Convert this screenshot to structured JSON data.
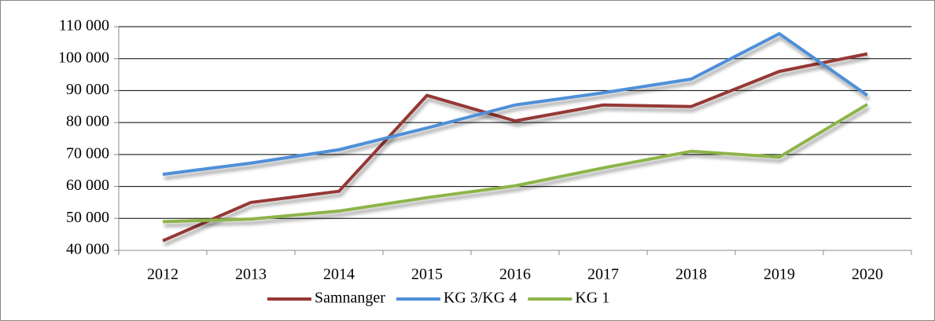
{
  "chart_data": {
    "type": "line",
    "categories": [
      "2012",
      "2013",
      "2014",
      "2015",
      "2016",
      "2017",
      "2018",
      "2019",
      "2020"
    ],
    "series": [
      {
        "name": "Samnanger",
        "color": "#953735",
        "values": [
          43000,
          55000,
          58500,
          88500,
          80500,
          85500,
          85000,
          96000,
          101500
        ]
      },
      {
        "name": "KG 3/KG 4",
        "color": "#4f8fd8",
        "values": [
          63800,
          67300,
          71500,
          78300,
          85500,
          89300,
          93600,
          107800,
          88500
        ]
      },
      {
        "name": "KG 1",
        "color": "#8db44a",
        "values": [
          49000,
          49800,
          52300,
          56500,
          60200,
          65800,
          71000,
          69200,
          85700
        ]
      }
    ],
    "ylim": [
      40000,
      110000
    ],
    "yticks": [
      {
        "value": 40000,
        "label": "40 000"
      },
      {
        "value": 50000,
        "label": "50 000"
      },
      {
        "value": 60000,
        "label": "60 000"
      },
      {
        "value": 70000,
        "label": "70 000"
      },
      {
        "value": 80000,
        "label": "80 000"
      },
      {
        "value": 90000,
        "label": "90 000"
      },
      {
        "value": 100000,
        "label": "100 000"
      },
      {
        "value": 110000,
        "label": "110 000"
      }
    ],
    "grid": true,
    "legend": "bottom"
  }
}
